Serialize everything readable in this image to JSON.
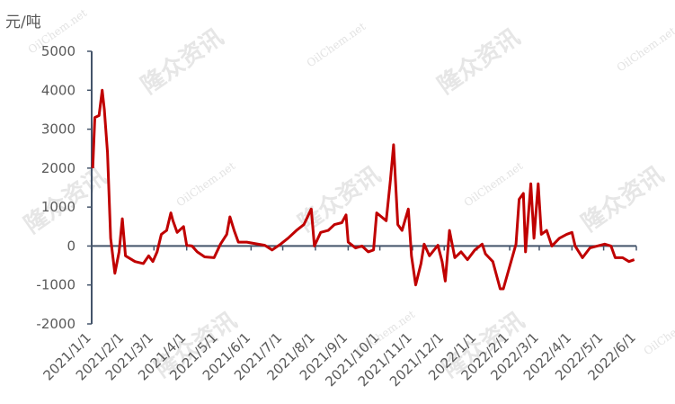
{
  "chart_data": {
    "type": "line",
    "y_label": "元/吨",
    "watermark": "隆众资讯",
    "watermark_site": "OilChem.net",
    "xlim": [
      "2021/1/1",
      "2022/6/1"
    ],
    "xticks": [
      "2021/1/1",
      "2021/2/1",
      "2021/3/1",
      "2021/4/1",
      "2021/5/1",
      "2021/6/1",
      "2021/7/1",
      "2021/8/1",
      "2021/9/1",
      "2021/10/1",
      "2021/11/1",
      "2021/12/1",
      "2022/1/1",
      "2022/2/1",
      "2022/3/1",
      "2022/4/1",
      "2022/5/1",
      "2022/6/1"
    ],
    "ylim": [
      -2000,
      5000
    ],
    "yticks": [
      -2000,
      -1000,
      0,
      1000,
      2000,
      3000,
      4000,
      5000
    ],
    "series": [
      {
        "name": null,
        "color": "#c00000",
        "x": [
          "2021/1/2",
          "2021/1/4",
          "2021/1/8",
          "2021/1/11",
          "2021/1/13",
          "2021/1/16",
          "2021/1/19",
          "2021/1/23",
          "2021/1/27",
          "2021/1/30",
          "2021/2/2",
          "2021/2/11",
          "2021/2/19",
          "2021/2/24",
          "2021/2/28",
          "2021/3/4",
          "2021/3/8",
          "2021/3/13",
          "2021/3/17",
          "2021/3/19",
          "2021/3/23",
          "2021/3/29",
          "2021/4/1",
          "2021/4/6",
          "2021/4/11",
          "2021/4/18",
          "2021/4/27",
          "2021/5/3",
          "2021/5/9",
          "2021/5/12",
          "2021/5/16",
          "2021/5/20",
          "2021/5/28",
          "2021/6/3",
          "2021/6/14",
          "2021/6/21",
          "2021/6/29",
          "2021/7/6",
          "2021/7/14",
          "2021/7/21",
          "2021/7/28",
          "2021/7/31",
          "2021/8/6",
          "2021/8/13",
          "2021/8/19",
          "2021/8/26",
          "2021/8/30",
          "2021/9/1",
          "2021/9/8",
          "2021/9/14",
          "2021/9/20",
          "2021/9/25",
          "2021/9/28",
          "2021/10/7",
          "2021/10/11",
          "2021/10/14",
          "2021/10/18",
          "2021/10/22",
          "2021/10/28",
          "2021/10/31",
          "2021/11/4",
          "2021/11/9",
          "2021/11/12",
          "2021/11/17",
          "2021/11/25",
          "2021/11/29",
          "2021/12/2",
          "2021/12/6",
          "2021/12/11",
          "2021/12/17",
          "2021/12/23",
          "2021/12/30",
          "2022/1/6",
          "2022/1/9",
          "2022/1/16",
          "2022/1/23",
          "2022/1/26",
          "2022/2/7",
          "2022/2/10",
          "2022/2/14",
          "2022/2/16",
          "2022/2/21",
          "2022/2/24",
          "2022/2/28",
          "2022/3/3",
          "2022/3/8",
          "2022/3/13",
          "2022/3/20",
          "2022/3/27",
          "2022/4/1",
          "2022/4/4",
          "2022/4/11",
          "2022/4/18",
          "2022/4/25",
          "2022/5/2",
          "2022/5/8",
          "2022/5/12",
          "2022/5/19",
          "2022/5/25",
          "2022/5/30"
        ],
        "values": [
          2000,
          3300,
          3350,
          4000,
          3500,
          2400,
          200,
          -700,
          -150,
          700,
          -250,
          -400,
          -450,
          -250,
          -400,
          -150,
          300,
          400,
          850,
          650,
          350,
          500,
          20,
          0,
          -150,
          -280,
          -300,
          50,
          300,
          750,
          400,
          100,
          100,
          70,
          20,
          -100,
          50,
          200,
          400,
          550,
          950,
          0,
          350,
          400,
          550,
          600,
          800,
          100,
          -50,
          0,
          -150,
          -100,
          850,
          650,
          1700,
          2600,
          550,
          400,
          950,
          -250,
          -1000,
          -450,
          50,
          -250,
          20,
          -400,
          -900,
          400,
          -300,
          -150,
          -350,
          -100,
          50,
          -200,
          -400,
          -1100,
          -1100,
          50,
          1200,
          1350,
          -150,
          1600,
          200,
          1600,
          300,
          400,
          0,
          200,
          300,
          350,
          0,
          -300,
          -50,
          0,
          50,
          0,
          -300,
          -300,
          -400,
          -350
        ]
      }
    ]
  }
}
